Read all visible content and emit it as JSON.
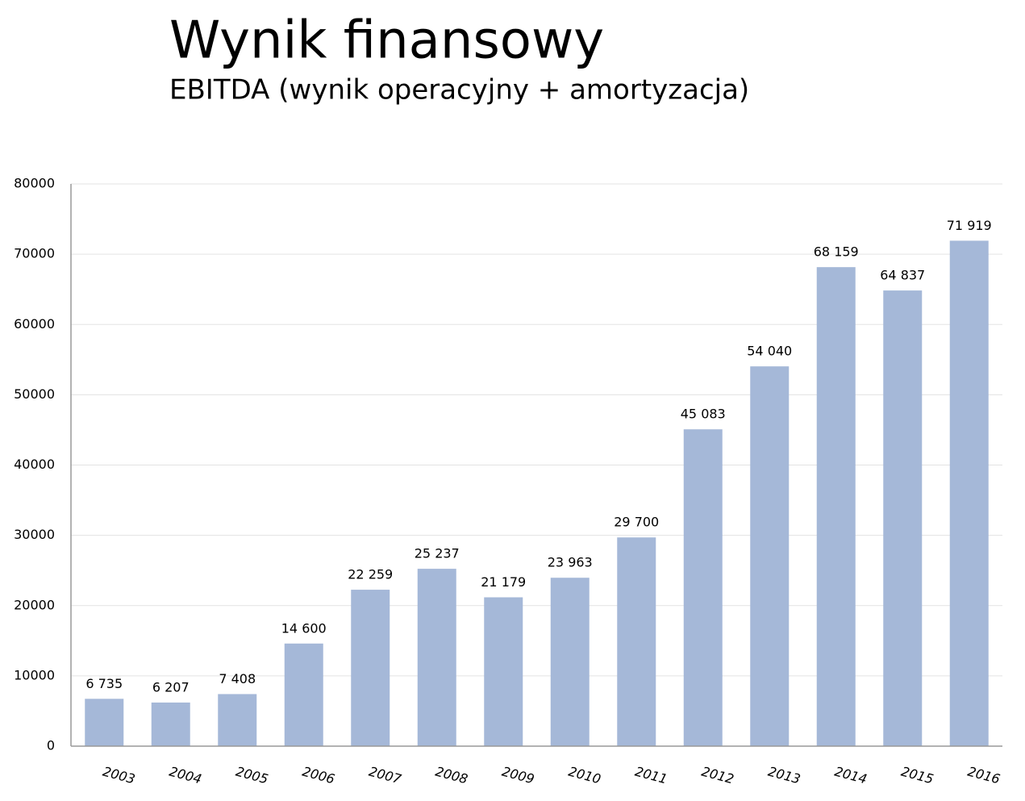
{
  "chart_data": {
    "type": "bar",
    "title": "Wynik finansowy",
    "subtitle": "EBITDA (wynik operacyjny + amortyzacja)",
    "categories": [
      "2003",
      "2004",
      "2005",
      "2006",
      "2007",
      "2008",
      "2009",
      "2010",
      "2011",
      "2012",
      "2013",
      "2014",
      "2015",
      "2016"
    ],
    "values": [
      6735,
      6207,
      7408,
      14600,
      22259,
      25237,
      21179,
      23963,
      29700,
      45083,
      54040,
      68159,
      64837,
      71919
    ],
    "value_labels": [
      "6 735",
      "6 207",
      "7 408",
      "14 600",
      "22 259",
      "25 237",
      "21 179",
      "23 963",
      "29 700",
      "45 083",
      "54 040",
      "68 159",
      "64 837",
      "71 919"
    ],
    "color": "#a5b8d8",
    "ylim": [
      0,
      80000
    ],
    "yticks": [
      0,
      10000,
      20000,
      30000,
      40000,
      50000,
      60000,
      70000,
      80000
    ],
    "grid": true
  }
}
